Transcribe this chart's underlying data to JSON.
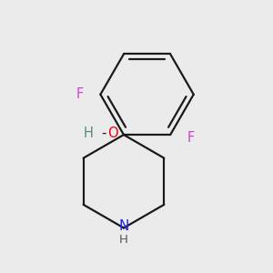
{
  "background_color": "#ebebeb",
  "bond_color": "#1a1a1a",
  "atom_colors": {
    "F": "#cc44cc",
    "O": "#e8000e",
    "N": "#2222ee",
    "H_teal": "#558888",
    "C": "#1a1a1a"
  },
  "figsize": [
    3.0,
    3.0
  ],
  "dpi": 100,
  "lw": 1.6
}
